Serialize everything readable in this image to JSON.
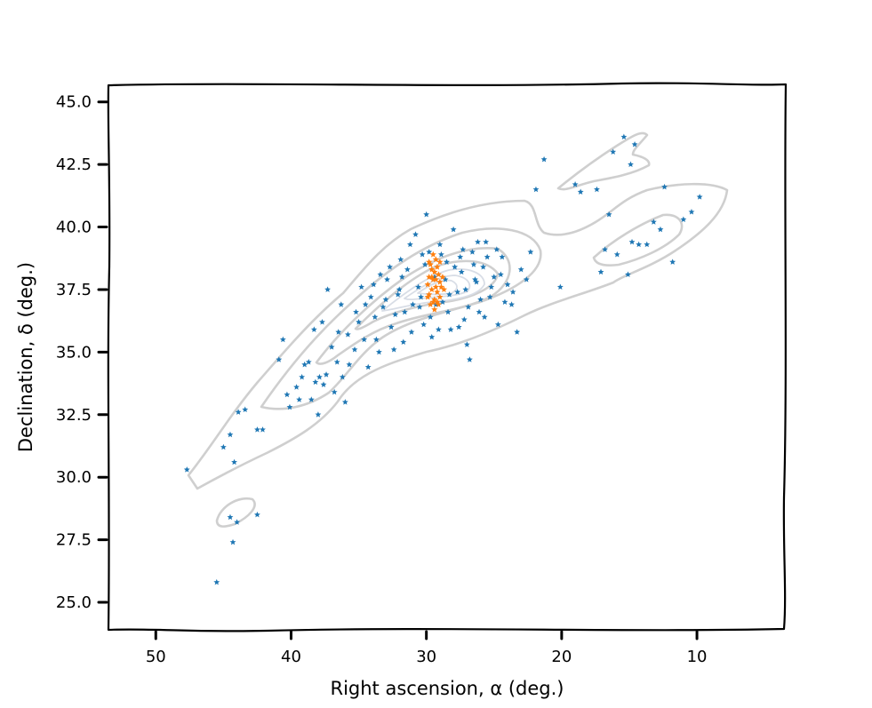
{
  "chart_data": {
    "type": "scatter",
    "title": "",
    "xlabel": "Right ascension, α (deg.)",
    "ylabel": "Declination, δ (deg.)",
    "xlim": [
      53.5,
      3.5
    ],
    "ylim": [
      23.9,
      45.7
    ],
    "x_inverted": true,
    "grid": false,
    "xticks": [
      50,
      40,
      30,
      20,
      10
    ],
    "xtick_labels": [
      "50",
      "40",
      "30",
      "20",
      "10"
    ],
    "yticks": [
      25.0,
      27.5,
      30.0,
      32.5,
      35.0,
      37.5,
      40.0,
      42.5,
      45.0
    ],
    "ytick_labels": [
      "25.0",
      "27.5",
      "30.0",
      "32.5",
      "35.0",
      "37.5",
      "40.0",
      "42.5",
      "45.0"
    ],
    "series": [
      {
        "color": "#1f77b4",
        "marker": "star",
        "points": [
          [
            47.7,
            30.3
          ],
          [
            45.5,
            25.8
          ],
          [
            44.5,
            28.4
          ],
          [
            44.3,
            27.4
          ],
          [
            44.0,
            28.2
          ],
          [
            44.2,
            30.6
          ],
          [
            45.0,
            31.2
          ],
          [
            44.5,
            31.7
          ],
          [
            43.9,
            32.6
          ],
          [
            43.4,
            32.7
          ],
          [
            42.5,
            28.5
          ],
          [
            42.5,
            31.9
          ],
          [
            42.1,
            31.9
          ],
          [
            40.9,
            34.7
          ],
          [
            40.6,
            35.5
          ],
          [
            40.3,
            33.3
          ],
          [
            40.1,
            32.8
          ],
          [
            39.6,
            33.6
          ],
          [
            39.2,
            34.0
          ],
          [
            39.0,
            34.5
          ],
          [
            38.5,
            33.1
          ],
          [
            38.2,
            33.8
          ],
          [
            38.0,
            32.5
          ],
          [
            37.6,
            33.7
          ],
          [
            37.4,
            34.1
          ],
          [
            37.0,
            35.2
          ],
          [
            36.6,
            34.6
          ],
          [
            36.2,
            34.0
          ],
          [
            36.0,
            33.0
          ],
          [
            35.8,
            35.7
          ],
          [
            35.3,
            35.1
          ],
          [
            35.0,
            36.2
          ],
          [
            34.6,
            35.5
          ],
          [
            34.3,
            34.4
          ],
          [
            34.1,
            37.2
          ],
          [
            33.8,
            36.4
          ],
          [
            33.5,
            35.0
          ],
          [
            33.2,
            36.8
          ],
          [
            32.9,
            37.9
          ],
          [
            32.6,
            36.0
          ],
          [
            32.3,
            36.5
          ],
          [
            32.0,
            37.5
          ],
          [
            31.7,
            35.4
          ],
          [
            31.4,
            38.3
          ],
          [
            31.0,
            36.9
          ],
          [
            30.8,
            39.7
          ],
          [
            30.6,
            37.6
          ],
          [
            30.3,
            38.9
          ],
          [
            30.0,
            40.5
          ],
          [
            29.7,
            36.4
          ],
          [
            29.4,
            38.0
          ],
          [
            29.0,
            39.3
          ],
          [
            28.8,
            37.0
          ],
          [
            28.5,
            38.6
          ],
          [
            28.2,
            35.9
          ],
          [
            28.0,
            39.9
          ],
          [
            27.7,
            37.4
          ],
          [
            27.4,
            38.2
          ],
          [
            27.2,
            36.3
          ],
          [
            27.0,
            35.3
          ],
          [
            26.8,
            34.7
          ],
          [
            26.6,
            39.0
          ],
          [
            26.3,
            37.8
          ],
          [
            26.1,
            36.6
          ],
          [
            25.8,
            38.4
          ],
          [
            25.6,
            39.4
          ],
          [
            25.3,
            37.2
          ],
          [
            25.0,
            38.0
          ],
          [
            24.7,
            36.1
          ],
          [
            24.4,
            38.8
          ],
          [
            24.0,
            37.7
          ],
          [
            23.7,
            36.9
          ],
          [
            23.3,
            35.8
          ],
          [
            23.0,
            38.3
          ],
          [
            22.6,
            37.9
          ],
          [
            22.3,
            39.0
          ],
          [
            21.9,
            41.5
          ],
          [
            21.3,
            42.7
          ],
          [
            20.1,
            37.6
          ],
          [
            19.0,
            41.7
          ],
          [
            18.6,
            41.4
          ],
          [
            17.4,
            41.5
          ],
          [
            17.1,
            38.2
          ],
          [
            16.8,
            39.1
          ],
          [
            16.5,
            40.5
          ],
          [
            16.2,
            43.0
          ],
          [
            15.9,
            38.9
          ],
          [
            15.4,
            43.6
          ],
          [
            15.1,
            38.1
          ],
          [
            14.8,
            39.4
          ],
          [
            14.3,
            39.3
          ],
          [
            13.7,
            39.3
          ],
          [
            13.2,
            40.2
          ],
          [
            12.7,
            39.9
          ],
          [
            12.4,
            41.6
          ],
          [
            11.8,
            38.6
          ],
          [
            11.0,
            40.3
          ],
          [
            10.4,
            40.6
          ],
          [
            9.8,
            41.2
          ],
          [
            14.6,
            43.3
          ],
          [
            14.9,
            42.5
          ],
          [
            35.7,
            34.5
          ],
          [
            36.8,
            33.4
          ],
          [
            37.9,
            34.0
          ],
          [
            38.7,
            34.6
          ],
          [
            39.4,
            33.1
          ],
          [
            33.7,
            35.5
          ],
          [
            32.4,
            35.1
          ],
          [
            31.1,
            35.8
          ],
          [
            30.2,
            36.1
          ],
          [
            29.3,
            36.9
          ],
          [
            28.4,
            36.6
          ],
          [
            27.6,
            36.0
          ],
          [
            26.9,
            36.8
          ],
          [
            26.0,
            37.1
          ],
          [
            25.2,
            37.6
          ],
          [
            24.2,
            37.0
          ],
          [
            33.0,
            37.1
          ],
          [
            31.9,
            38.7
          ],
          [
            31.2,
            39.3
          ],
          [
            29.8,
            39.0
          ],
          [
            28.9,
            38.9
          ],
          [
            27.3,
            39.1
          ],
          [
            26.5,
            38.5
          ],
          [
            25.5,
            38.8
          ],
          [
            24.8,
            39.1
          ],
          [
            33.9,
            37.7
          ],
          [
            34.5,
            36.9
          ],
          [
            35.2,
            36.6
          ],
          [
            36.3,
            36.9
          ],
          [
            37.3,
            37.5
          ],
          [
            38.3,
            35.9
          ],
          [
            31.6,
            36.6
          ],
          [
            30.4,
            37.2
          ],
          [
            29.6,
            35.6
          ],
          [
            28.6,
            37.9
          ],
          [
            27.9,
            38.4
          ],
          [
            27.1,
            37.5
          ],
          [
            26.4,
            37.9
          ],
          [
            25.7,
            36.4
          ],
          [
            31.8,
            38.0
          ],
          [
            32.7,
            38.4
          ],
          [
            33.4,
            38.1
          ],
          [
            30.1,
            38.5
          ],
          [
            28.3,
            37.3
          ],
          [
            27.5,
            38.8
          ],
          [
            29.1,
            35.9
          ],
          [
            30.5,
            36.8
          ],
          [
            32.1,
            37.3
          ],
          [
            34.8,
            37.6
          ],
          [
            36.5,
            35.8
          ],
          [
            37.7,
            36.2
          ],
          [
            26.2,
            39.4
          ],
          [
            24.5,
            38.1
          ],
          [
            23.6,
            37.4
          ]
        ]
      },
      {
        "color": "#ff7f0e",
        "marker": "star",
        "points": [
          [
            29.5,
            37.9
          ],
          [
            29.3,
            37.6
          ],
          [
            29.8,
            37.3
          ],
          [
            29.1,
            38.1
          ],
          [
            29.6,
            38.3
          ],
          [
            29.0,
            37.8
          ],
          [
            29.9,
            37.7
          ],
          [
            29.4,
            37.1
          ],
          [
            29.2,
            37.4
          ],
          [
            29.7,
            38.5
          ],
          [
            28.9,
            37.6
          ],
          [
            29.5,
            37.0
          ],
          [
            29.3,
            38.7
          ],
          [
            29.8,
            38.0
          ],
          [
            29.0,
            37.2
          ],
          [
            29.6,
            37.5
          ],
          [
            29.2,
            38.4
          ],
          [
            28.8,
            38.0
          ],
          [
            29.4,
            38.2
          ],
          [
            29.9,
            37.2
          ],
          [
            29.1,
            36.9
          ],
          [
            29.7,
            36.9
          ],
          [
            29.3,
            37.9
          ],
          [
            29.5,
            38.9
          ],
          [
            29.0,
            38.6
          ],
          [
            28.7,
            37.5
          ],
          [
            29.8,
            38.6
          ],
          [
            29.4,
            36.7
          ],
          [
            29.6,
            38.0
          ],
          [
            29.2,
            37.0
          ]
        ]
      }
    ]
  }
}
